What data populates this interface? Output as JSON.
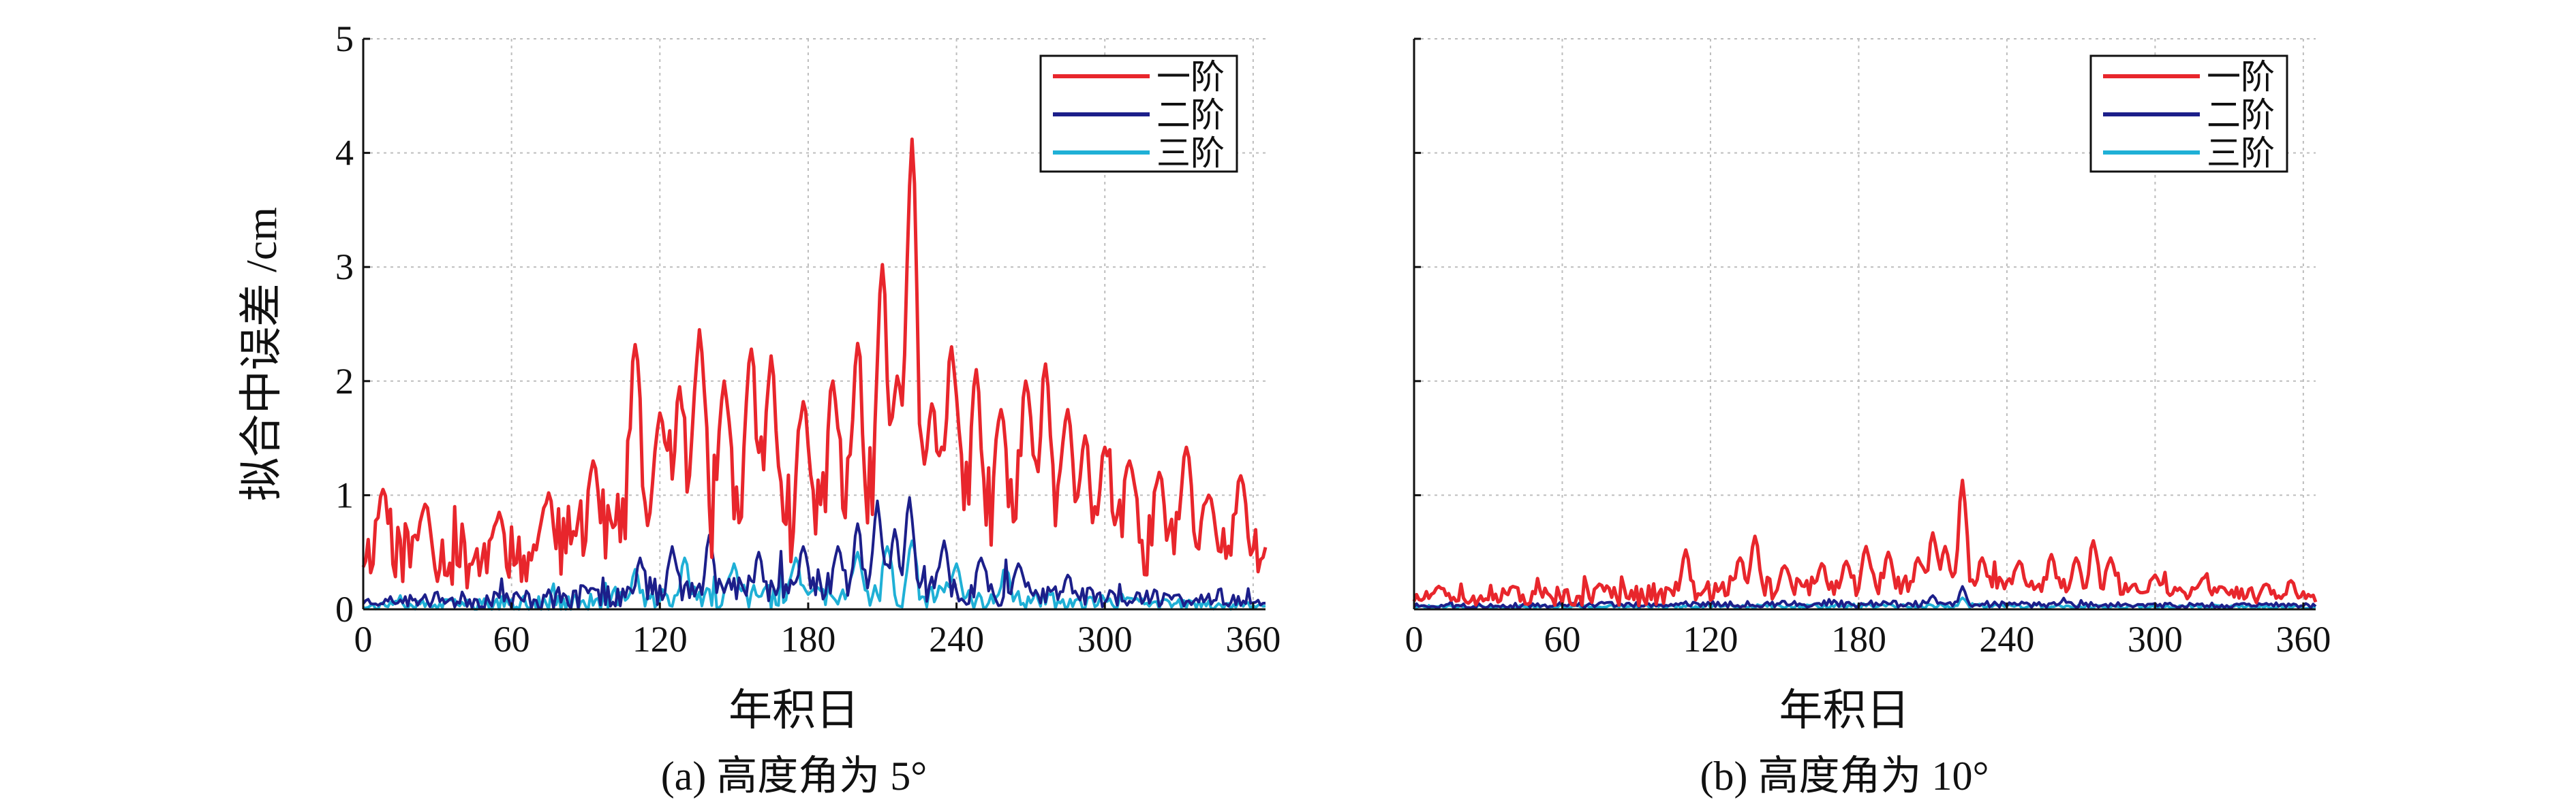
{
  "figure": {
    "ylabel": "拟合中误差 /cm"
  },
  "chart_data": [
    {
      "type": "line",
      "caption": "(a) 高度角为 5°",
      "xlabel": "年积日",
      "ylabel": "拟合中误差 /cm",
      "xlim": [
        0,
        365
      ],
      "ylim": [
        0,
        5
      ],
      "xticks": [
        0,
        60,
        120,
        180,
        240,
        300,
        360
      ],
      "yticks": [
        0,
        1,
        2,
        3,
        4,
        5
      ],
      "grid": true,
      "legend_position": "top-right",
      "series": [
        {
          "name": "一阶",
          "color": "#e8262c",
          "baseline": [
            [
              0,
              0.5
            ],
            [
              60,
              0.45
            ],
            [
              90,
              0.6
            ],
            [
              120,
              0.75
            ],
            [
              150,
              0.75
            ],
            [
              180,
              0.8
            ],
            [
              210,
              0.8
            ],
            [
              240,
              0.75
            ],
            [
              270,
              0.7
            ],
            [
              300,
              0.6
            ],
            [
              330,
              0.5
            ],
            [
              365,
              0.5
            ]
          ],
          "noise_amp": [
            [
              0,
              0.25
            ],
            [
              90,
              0.35
            ],
            [
              120,
              0.5
            ],
            [
              240,
              0.5
            ],
            [
              300,
              0.35
            ],
            [
              365,
              0.25
            ]
          ],
          "spikes": [
            [
              8,
              1.05
            ],
            [
              25,
              0.92
            ],
            [
              55,
              0.85
            ],
            [
              75,
              1.02
            ],
            [
              93,
              1.3
            ],
            [
              110,
              2.32
            ],
            [
              120,
              1.72
            ],
            [
              128,
              1.95
            ],
            [
              136,
              2.45
            ],
            [
              146,
              2.0
            ],
            [
              157,
              2.28
            ],
            [
              165,
              2.22
            ],
            [
              178,
              1.82
            ],
            [
              190,
              2.0
            ],
            [
              200,
              2.33
            ],
            [
              210,
              3.02
            ],
            [
              216,
              2.02
            ],
            [
              222,
              4.12
            ],
            [
              230,
              1.8
            ],
            [
              238,
              2.3
            ],
            [
              248,
              2.1
            ],
            [
              258,
              1.75
            ],
            [
              268,
              2.0
            ],
            [
              276,
              2.15
            ],
            [
              285,
              1.75
            ],
            [
              292,
              1.52
            ],
            [
              300,
              1.42
            ],
            [
              310,
              1.3
            ],
            [
              322,
              1.2
            ],
            [
              333,
              1.42
            ],
            [
              342,
              1.0
            ],
            [
              355,
              1.17
            ]
          ],
          "seed": 11,
          "sigma": 2,
          "min": 0.05
        },
        {
          "name": "二阶",
          "color": "#1c1f8a",
          "baseline": [
            [
              0,
              0.07
            ],
            [
              80,
              0.09
            ],
            [
              110,
              0.15
            ],
            [
              150,
              0.18
            ],
            [
              200,
              0.2
            ],
            [
              250,
              0.15
            ],
            [
              300,
              0.1
            ],
            [
              365,
              0.07
            ]
          ],
          "noise_amp": [
            [
              0,
              0.04
            ],
            [
              100,
              0.12
            ],
            [
              220,
              0.14
            ],
            [
              300,
              0.08
            ],
            [
              365,
              0.04
            ]
          ],
          "spikes": [
            [
              112,
              0.45
            ],
            [
              125,
              0.55
            ],
            [
              140,
              0.65
            ],
            [
              160,
              0.5
            ],
            [
              178,
              0.55
            ],
            [
              192,
              0.55
            ],
            [
              200,
              0.75
            ],
            [
              208,
              0.95
            ],
            [
              215,
              0.7
            ],
            [
              221,
              0.98
            ],
            [
              235,
              0.6
            ],
            [
              250,
              0.45
            ],
            [
              265,
              0.4
            ],
            [
              285,
              0.3
            ]
          ],
          "seed": 23,
          "sigma": 1.5,
          "min": 0.01
        },
        {
          "name": "三阶",
          "color": "#1fb0d6",
          "baseline": [
            [
              0,
              0.03
            ],
            [
              90,
              0.05
            ],
            [
              150,
              0.1
            ],
            [
              220,
              0.12
            ],
            [
              300,
              0.06
            ],
            [
              365,
              0.03
            ]
          ],
          "noise_amp": [
            [
              0,
              0.03
            ],
            [
              100,
              0.1
            ],
            [
              220,
              0.12
            ],
            [
              300,
              0.06
            ],
            [
              365,
              0.03
            ]
          ],
          "spikes": [
            [
              110,
              0.35
            ],
            [
              130,
              0.45
            ],
            [
              150,
              0.4
            ],
            [
              175,
              0.45
            ],
            [
              200,
              0.5
            ],
            [
              212,
              0.55
            ],
            [
              222,
              0.6
            ],
            [
              240,
              0.4
            ],
            [
              260,
              0.35
            ]
          ],
          "seed": 37,
          "sigma": 1.5,
          "min": 0.0
        }
      ]
    },
    {
      "type": "line",
      "caption": "(b) 高度角为 10°",
      "xlabel": "年积日",
      "ylabel": "",
      "xlim": [
        0,
        365
      ],
      "ylim": [
        0,
        5
      ],
      "xticks": [
        0,
        60,
        120,
        180,
        240,
        300,
        360
      ],
      "yticks": [
        0,
        1,
        2,
        3,
        4,
        5
      ],
      "grid": true,
      "legend_position": "top-right",
      "series": [
        {
          "name": "一阶",
          "color": "#e8262c",
          "baseline": [
            [
              0,
              0.1
            ],
            [
              90,
              0.12
            ],
            [
              120,
              0.17
            ],
            [
              180,
              0.2
            ],
            [
              240,
              0.2
            ],
            [
              300,
              0.15
            ],
            [
              365,
              0.1
            ]
          ],
          "noise_amp": [
            [
              0,
              0.06
            ],
            [
              120,
              0.1
            ],
            [
              240,
              0.1
            ],
            [
              365,
              0.06
            ]
          ],
          "spikes": [
            [
              10,
              0.2
            ],
            [
              40,
              0.2
            ],
            [
              75,
              0.22
            ],
            [
              110,
              0.52
            ],
            [
              132,
              0.45
            ],
            [
              138,
              0.64
            ],
            [
              150,
              0.38
            ],
            [
              165,
              0.4
            ],
            [
              175,
              0.42
            ],
            [
              183,
              0.55
            ],
            [
              192,
              0.5
            ],
            [
              204,
              0.45
            ],
            [
              210,
              0.67
            ],
            [
              215,
              0.55
            ],
            [
              222,
              1.13
            ],
            [
              230,
              0.45
            ],
            [
              245,
              0.42
            ],
            [
              258,
              0.48
            ],
            [
              268,
              0.45
            ],
            [
              275,
              0.6
            ],
            [
              282,
              0.45
            ],
            [
              300,
              0.3
            ],
            [
              320,
              0.28
            ],
            [
              345,
              0.22
            ],
            [
              355,
              0.25
            ]
          ],
          "seed": 51,
          "sigma": 1.5,
          "min": 0.02
        },
        {
          "name": "二阶",
          "color": "#1c1f8a",
          "baseline": [
            [
              0,
              0.03
            ],
            [
              180,
              0.05
            ],
            [
              365,
              0.03
            ]
          ],
          "noise_amp": [
            [
              0,
              0.02
            ],
            [
              180,
              0.03
            ],
            [
              365,
              0.02
            ]
          ],
          "spikes": [
            [
              222,
              0.2
            ],
            [
              210,
              0.12
            ]
          ],
          "seed": 63,
          "sigma": 1.2,
          "min": 0.0
        },
        {
          "name": "三阶",
          "color": "#1fb0d6",
          "baseline": [
            [
              0,
              0.02
            ],
            [
              180,
              0.03
            ],
            [
              365,
              0.02
            ]
          ],
          "noise_amp": [
            [
              0,
              0.015
            ],
            [
              180,
              0.02
            ],
            [
              365,
              0.015
            ]
          ],
          "spikes": [
            [
              222,
              0.1
            ]
          ],
          "seed": 71,
          "sigma": 1.2,
          "min": 0.0
        }
      ]
    }
  ]
}
